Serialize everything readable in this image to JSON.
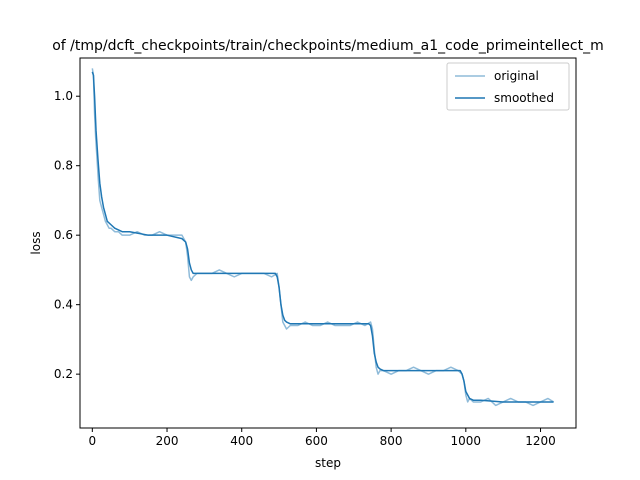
{
  "chart_data": {
    "type": "line",
    "title": "of /tmp/dcft_checkpoints/train/checkpoints/medium_a1_code_primeintellect_m",
    "xlabel": "step",
    "ylabel": "loss",
    "xlim": [
      -33,
      1295
    ],
    "ylim": [
      0.045,
      1.11
    ],
    "xticks": [
      0,
      200,
      400,
      600,
      800,
      1000,
      1200
    ],
    "yticks": [
      0.2,
      0.4,
      0.6,
      0.8,
      1.0
    ],
    "xtick_labels": [
      "0",
      "200",
      "400",
      "600",
      "800",
      "1000",
      "1200"
    ],
    "ytick_labels": [
      "0.2",
      "0.4",
      "0.6",
      "0.8",
      "1.0"
    ],
    "grid": false,
    "legend": "top-right",
    "series": [
      {
        "name": "original",
        "color": "#8fbbd9",
        "x": [
          0,
          3,
          6,
          9,
          12,
          16,
          20,
          25,
          30,
          35,
          40,
          45,
          50,
          60,
          70,
          80,
          100,
          120,
          140,
          160,
          180,
          200,
          220,
          240,
          250,
          255,
          260,
          265,
          270,
          280,
          300,
          320,
          340,
          360,
          380,
          400,
          420,
          440,
          460,
          480,
          495,
          500,
          505,
          510,
          515,
          520,
          530,
          550,
          570,
          590,
          610,
          630,
          650,
          670,
          690,
          710,
          730,
          745,
          750,
          755,
          760,
          765,
          770,
          780,
          800,
          820,
          840,
          860,
          880,
          900,
          920,
          940,
          960,
          980,
          990,
          995,
          1000,
          1005,
          1010,
          1020,
          1040,
          1060,
          1080,
          1100,
          1120,
          1140,
          1160,
          1180,
          1200,
          1220,
          1235
        ],
        "values": [
          1.08,
          1.06,
          0.95,
          0.88,
          0.83,
          0.76,
          0.7,
          0.68,
          0.66,
          0.64,
          0.63,
          0.62,
          0.62,
          0.61,
          0.61,
          0.6,
          0.6,
          0.61,
          0.6,
          0.6,
          0.61,
          0.6,
          0.6,
          0.6,
          0.58,
          0.54,
          0.48,
          0.47,
          0.48,
          0.49,
          0.49,
          0.49,
          0.5,
          0.49,
          0.48,
          0.49,
          0.49,
          0.49,
          0.49,
          0.48,
          0.49,
          0.45,
          0.4,
          0.35,
          0.34,
          0.33,
          0.34,
          0.34,
          0.35,
          0.34,
          0.34,
          0.35,
          0.34,
          0.34,
          0.34,
          0.35,
          0.34,
          0.35,
          0.33,
          0.27,
          0.22,
          0.2,
          0.21,
          0.21,
          0.2,
          0.21,
          0.21,
          0.22,
          0.21,
          0.2,
          0.21,
          0.21,
          0.22,
          0.21,
          0.2,
          0.18,
          0.14,
          0.12,
          0.13,
          0.12,
          0.12,
          0.13,
          0.11,
          0.12,
          0.13,
          0.12,
          0.12,
          0.11,
          0.12,
          0.13,
          0.12
        ]
      },
      {
        "name": "smoothed",
        "color": "#1f77b4",
        "x": [
          0,
          3,
          6,
          10,
          15,
          20,
          25,
          30,
          35,
          40,
          50,
          60,
          80,
          100,
          150,
          200,
          240,
          250,
          255,
          260,
          265,
          270,
          280,
          300,
          350,
          400,
          450,
          490,
          495,
          500,
          505,
          510,
          515,
          520,
          530,
          550,
          600,
          650,
          700,
          740,
          745,
          750,
          755,
          760,
          765,
          770,
          780,
          800,
          850,
          900,
          950,
          985,
          990,
          995,
          1000,
          1005,
          1010,
          1020,
          1040,
          1100,
          1150,
          1200,
          1235
        ],
        "values": [
          1.07,
          1.06,
          1.0,
          0.9,
          0.82,
          0.75,
          0.71,
          0.68,
          0.66,
          0.64,
          0.63,
          0.62,
          0.61,
          0.61,
          0.6,
          0.6,
          0.59,
          0.58,
          0.56,
          0.52,
          0.5,
          0.49,
          0.49,
          0.49,
          0.49,
          0.49,
          0.49,
          0.49,
          0.48,
          0.45,
          0.4,
          0.37,
          0.355,
          0.35,
          0.345,
          0.345,
          0.345,
          0.345,
          0.345,
          0.345,
          0.34,
          0.31,
          0.26,
          0.235,
          0.22,
          0.215,
          0.21,
          0.21,
          0.21,
          0.21,
          0.21,
          0.21,
          0.2,
          0.18,
          0.15,
          0.14,
          0.13,
          0.125,
          0.125,
          0.12,
          0.12,
          0.12,
          0.12
        ]
      }
    ]
  }
}
